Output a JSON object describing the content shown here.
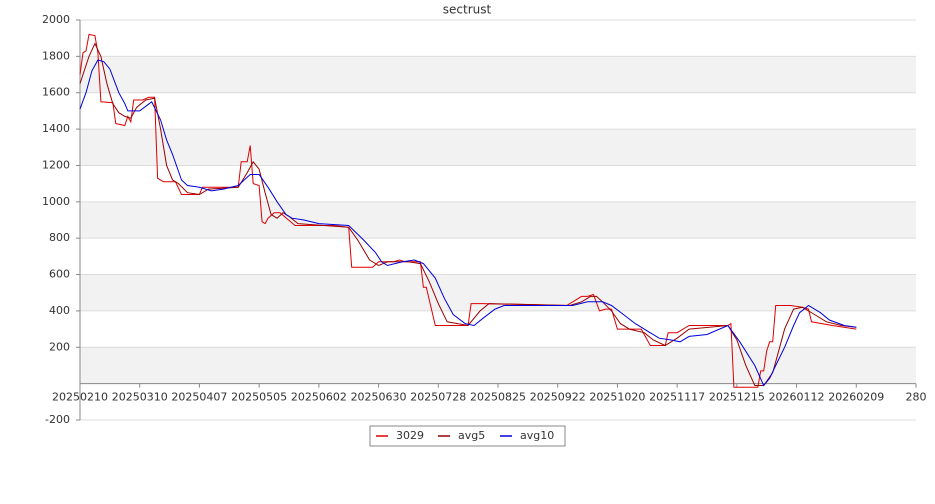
{
  "chart_data": {
    "type": "line",
    "title": "sectrust",
    "xlim": [
      0,
      280
    ],
    "ylim": [
      -200,
      2000
    ],
    "xticks": [
      {
        "value": 0,
        "label": "20250210"
      },
      {
        "value": 20,
        "label": "20250310"
      },
      {
        "value": 40,
        "label": "20250407"
      },
      {
        "value": 60,
        "label": "20250505"
      },
      {
        "value": 80,
        "label": "20250602"
      },
      {
        "value": 100,
        "label": "20250630"
      },
      {
        "value": 120,
        "label": "20250728"
      },
      {
        "value": 140,
        "label": "20250825"
      },
      {
        "value": 160,
        "label": "20250922"
      },
      {
        "value": 180,
        "label": "20251020"
      },
      {
        "value": 200,
        "label": "20251117"
      },
      {
        "value": 220,
        "label": "20251215"
      },
      {
        "value": 240,
        "label": "20260112"
      },
      {
        "value": 260,
        "label": "20260209"
      },
      280
    ],
    "yticks": [
      -200,
      200,
      400,
      600,
      800,
      1000,
      1200,
      1400,
      1600,
      1800,
      2000
    ],
    "grid": true,
    "legend": "bottom",
    "series": [
      {
        "name": "3029",
        "color": "#dd0000",
        "x": [
          0,
          1,
          2,
          3,
          5,
          6,
          7,
          11,
          12,
          15,
          16,
          17,
          18,
          21,
          23,
          25,
          26,
          28,
          32,
          34,
          40,
          41,
          44,
          53,
          54,
          56,
          57,
          58,
          60,
          61,
          62,
          63,
          65,
          67,
          72,
          76,
          85,
          90,
          91,
          98,
          100,
          105,
          107,
          109,
          114,
          115,
          116,
          119,
          130,
          131,
          135,
          163,
          168,
          170,
          172,
          174,
          176,
          178,
          180,
          188,
          191,
          196,
          197,
          200,
          204,
          217,
          218,
          219,
          227,
          228,
          229,
          230,
          231,
          232,
          233,
          238,
          242,
          244,
          245,
          252,
          260
        ],
        "values": [
          1700,
          1820,
          1830,
          1920,
          1915,
          1820,
          1550,
          1545,
          1430,
          1420,
          1470,
          1440,
          1560,
          1560,
          1575,
          1575,
          1130,
          1110,
          1110,
          1040,
          1040,
          1080,
          1080,
          1080,
          1220,
          1220,
          1310,
          1100,
          1090,
          890,
          880,
          910,
          940,
          940,
          870,
          870,
          870,
          860,
          640,
          640,
          670,
          670,
          680,
          670,
          670,
          530,
          530,
          320,
          320,
          440,
          440,
          430,
          480,
          480,
          490,
          400,
          410,
          410,
          300,
          300,
          210,
          210,
          280,
          280,
          320,
          320,
          330,
          -20,
          -20,
          70,
          70,
          180,
          230,
          230,
          430,
          430,
          420,
          410,
          340,
          320,
          300
        ]
      },
      {
        "name": "avg5",
        "color": "#990000",
        "x": [
          0,
          3,
          5,
          7,
          9,
          11,
          13,
          15,
          17,
          19,
          22,
          25,
          27,
          29,
          31,
          33,
          36,
          40,
          43,
          53,
          56,
          58,
          60,
          62,
          64,
          66,
          68,
          70,
          73,
          90,
          93,
          97,
          100,
          103,
          110,
          114,
          117,
          120,
          123,
          130,
          134,
          137,
          164,
          168,
          171,
          173,
          175,
          178,
          181,
          184,
          189,
          192,
          196,
          200,
          204,
          217,
          220,
          223,
          226,
          229,
          232,
          234,
          236,
          239,
          242,
          246,
          250,
          255,
          260
        ],
        "values": [
          1650,
          1800,
          1870,
          1800,
          1650,
          1540,
          1490,
          1470,
          1460,
          1520,
          1560,
          1570,
          1400,
          1200,
          1120,
          1100,
          1050,
          1040,
          1070,
          1080,
          1160,
          1220,
          1180,
          1050,
          930,
          910,
          940,
          920,
          880,
          860,
          790,
          680,
          650,
          670,
          670,
          660,
          560,
          440,
          340,
          320,
          400,
          440,
          430,
          450,
          480,
          480,
          450,
          400,
          330,
          300,
          280,
          240,
          210,
          250,
          300,
          320,
          240,
          100,
          -10,
          -10,
          60,
          180,
          300,
          410,
          420,
          380,
          340,
          320,
          310
        ]
      },
      {
        "name": "avg10",
        "color": "#0000dd",
        "x": [
          0,
          2,
          4,
          6,
          8,
          10,
          13,
          15,
          16,
          20,
          24,
          27,
          29,
          31,
          34,
          36,
          40,
          44,
          48,
          53,
          57,
          60,
          63,
          66,
          69,
          71,
          75,
          80,
          90,
          95,
          99,
          101,
          103,
          108,
          112,
          115,
          119,
          122,
          125,
          129,
          132,
          135,
          139,
          142,
          165,
          170,
          175,
          178,
          182,
          186,
          190,
          194,
          198,
          201,
          204,
          210,
          217,
          221,
          226,
          229,
          231,
          233,
          236,
          239,
          241,
          244,
          248,
          251,
          256,
          260
        ],
        "values": [
          1510,
          1600,
          1720,
          1780,
          1770,
          1730,
          1600,
          1540,
          1500,
          1500,
          1550,
          1450,
          1340,
          1260,
          1120,
          1090,
          1080,
          1060,
          1070,
          1090,
          1150,
          1150,
          1080,
          1000,
          930,
          910,
          900,
          880,
          870,
          790,
          720,
          670,
          650,
          670,
          680,
          660,
          580,
          470,
          380,
          330,
          320,
          360,
          410,
          430,
          430,
          450,
          450,
          430,
          380,
          330,
          290,
          250,
          240,
          230,
          260,
          270,
          320,
          230,
          100,
          -10,
          30,
          100,
          200,
          320,
          390,
          430,
          390,
          350,
          320,
          310
        ]
      }
    ]
  }
}
